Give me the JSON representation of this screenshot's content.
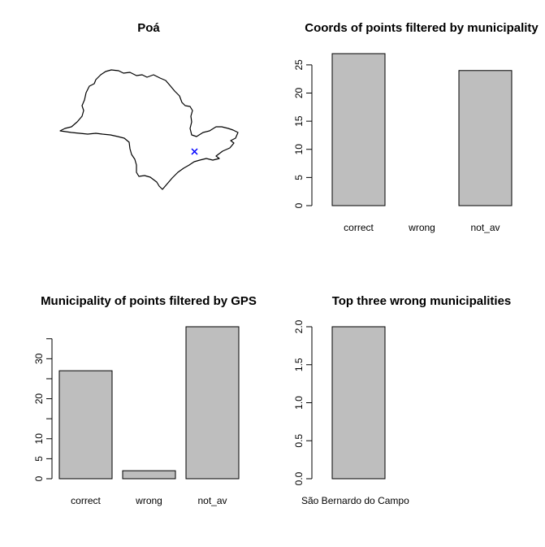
{
  "chart_data": [
    {
      "type": "map",
      "title": "Poá",
      "marker": {
        "symbol": "x",
        "color": "#0000ff"
      }
    },
    {
      "type": "bar",
      "title": "Coords of points filtered by municipality",
      "categories": [
        "correct",
        "wrong",
        "not_av"
      ],
      "values": [
        27,
        0,
        24
      ],
      "ylim": [
        0,
        27
      ],
      "yticks": [
        0,
        5,
        10,
        15,
        20,
        25
      ],
      "ytick_labels": [
        "0",
        "5",
        "10",
        "15",
        "20",
        "25"
      ],
      "xlabel": "",
      "ylabel": ""
    },
    {
      "type": "bar",
      "title": "Municipality of points filtered by GPS",
      "categories": [
        "correct",
        "wrong",
        "not_av"
      ],
      "values": [
        27,
        2,
        38
      ],
      "ylim": [
        0,
        38
      ],
      "yticks": [
        0,
        5,
        10,
        15,
        20,
        25,
        30,
        35
      ],
      "ytick_labels": [
        "0",
        "5",
        "10",
        "",
        "20",
        "",
        "30",
        ""
      ],
      "xlabel": "",
      "ylabel": ""
    },
    {
      "type": "bar",
      "title": "Top three wrong municipalities",
      "categories": [
        "São Bernardo do Campo"
      ],
      "values": [
        2
      ],
      "ylim": [
        0,
        2
      ],
      "yticks": [
        0,
        0.5,
        1,
        1.5,
        2
      ],
      "ytick_labels": [
        "0.0",
        "0.5",
        "1.0",
        "1.5",
        "2.0"
      ],
      "xlabel": "",
      "ylabel": ""
    }
  ]
}
